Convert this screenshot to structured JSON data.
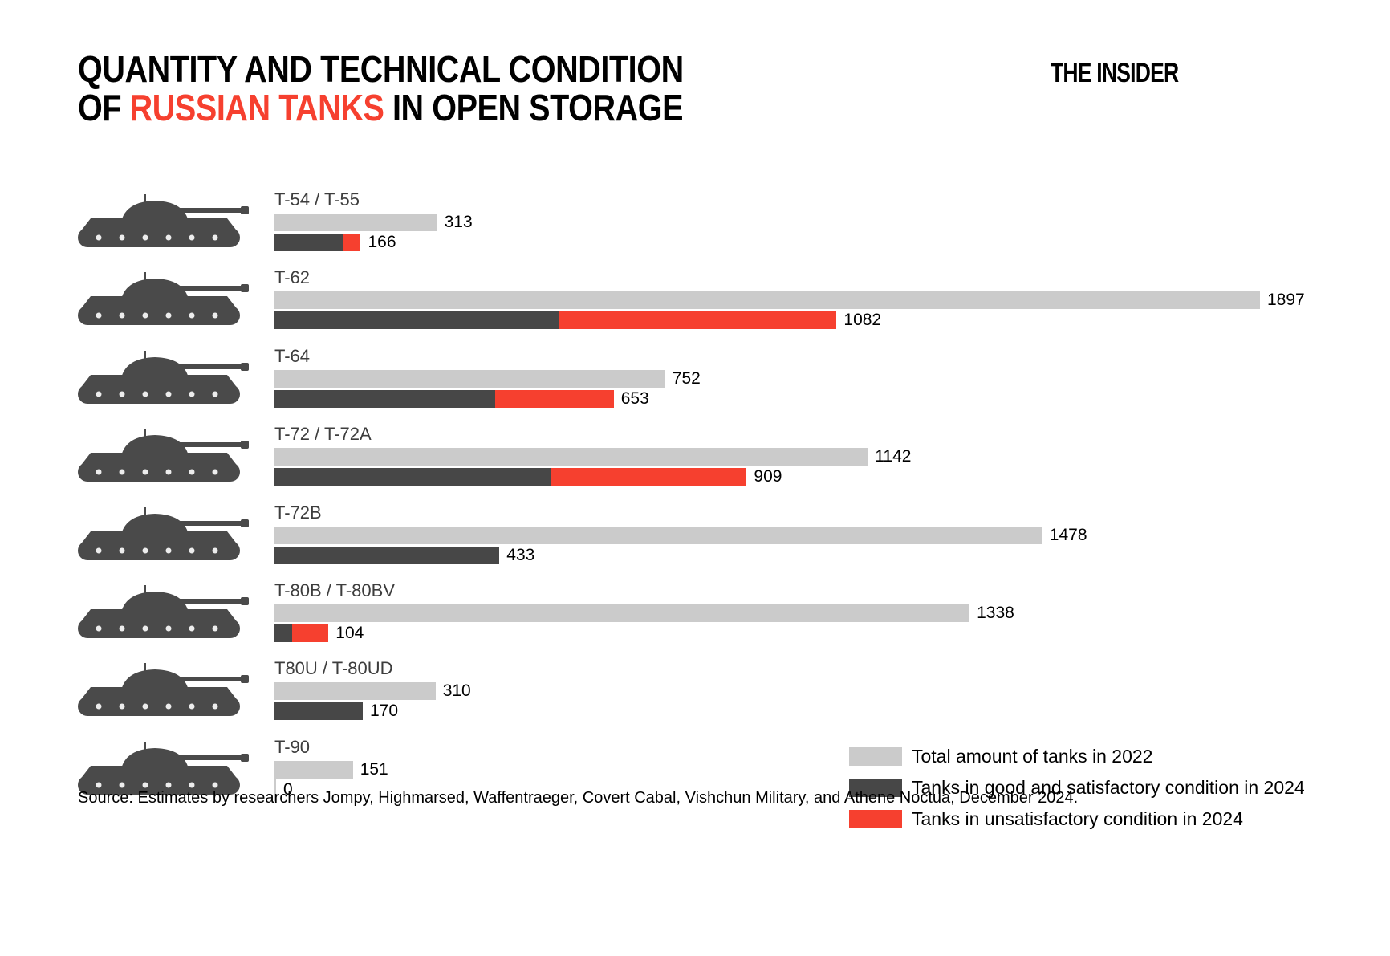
{
  "header": {
    "title_line1": "QUANTITY AND TECHNICAL CONDITION",
    "title_line2_prefix": "OF ",
    "title_line2_highlight": "RUSSIAN TANKS",
    "title_line2_suffix": " IN OPEN STORAGE",
    "logo_text": "THE INSIDER"
  },
  "colors": {
    "total_2022_gray": "#cbcbcb",
    "good_2024_dark": "#474747",
    "unsat_2024_red": "#f6402f",
    "title_highlight_red": "#f6402f",
    "tank_silhouette": "#4a4a4a"
  },
  "chart_data": {
    "type": "bar",
    "orientation": "horizontal",
    "title": "Quantity and technical condition of Russian tanks in open storage",
    "categories": [
      "T-54 / T-55",
      "T-62",
      "T-64",
      "T-72 / T-72A",
      "T-72B",
      "T-80B / T-80BV",
      "T80U / T-80UD",
      "T-90"
    ],
    "series": [
      {
        "name": "Total amount of tanks in 2022",
        "color": "#cbcbcb",
        "values": [
          313,
          1897,
          752,
          1142,
          1478,
          1338,
          310,
          151
        ]
      },
      {
        "name": "Tanks in good and satisfactory condition in 2024",
        "color": "#474747",
        "values": [
          133,
          547,
          425,
          532,
          433,
          34,
          170,
          0
        ]
      },
      {
        "name": "Tanks in unsatisfactory condition in 2024",
        "color": "#f6402f",
        "values": [
          33,
          535,
          228,
          377,
          0,
          70,
          0,
          0
        ]
      }
    ],
    "displayed_labels": {
      "total_2022": [
        "313",
        "1897",
        "752",
        "1142",
        "1478",
        "1338",
        "310",
        "151"
      ],
      "condition_2024_total": [
        "166",
        "1082",
        "653",
        "909",
        "433",
        "104",
        "170",
        "0"
      ]
    },
    "xlim": [
      0,
      1910
    ],
    "grid": false,
    "legend_position": "bottom-right"
  },
  "legend": {
    "items": [
      {
        "label": "Total amount of tanks in 2022",
        "color": "#cbcbcb"
      },
      {
        "label": "Tanks in good and satisfactory condition in 2024",
        "color": "#474747"
      },
      {
        "label": "Tanks in unsatisfactory condition in 2024",
        "color": "#f6402f"
      }
    ]
  },
  "source_line": "Source: Estimates by researchers Jompy, Highmarsed, Waffentraeger, Covert Cabal, Vishchun Military, and Athene Noctua, December 2024."
}
